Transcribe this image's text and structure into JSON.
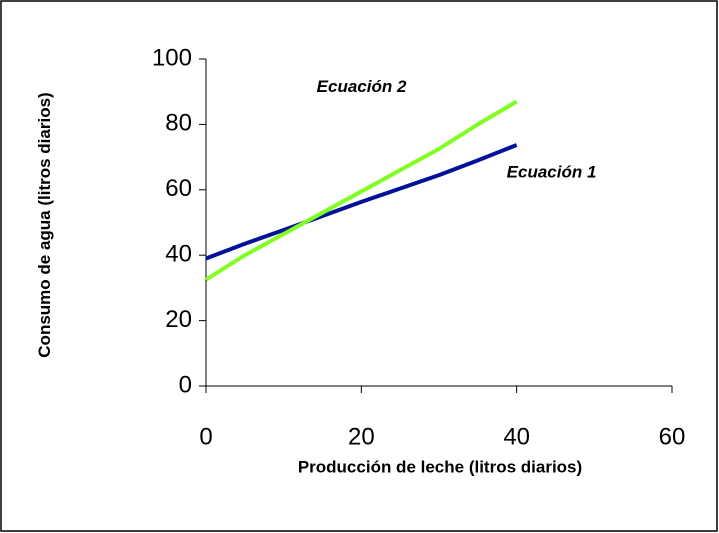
{
  "chart_data": {
    "type": "line",
    "x_label": "Producción de leche (litros diarios)",
    "y_label": "Consumo de agua (litros diarios)",
    "x": [
      0,
      5,
      10,
      15,
      20,
      25,
      30,
      35,
      40
    ],
    "series": [
      {
        "name": "Ecuación 1",
        "color": "#00129a",
        "values": [
          39,
          43.5,
          47.7,
          52,
          56.3,
          60.4,
          64.5,
          69,
          73.7
        ]
      },
      {
        "name": "Ecuación 2",
        "color": "#80ff20",
        "values": [
          32.5,
          40,
          46.5,
          53,
          59.5,
          66,
          72.5,
          80,
          87
        ]
      }
    ],
    "xlim": [
      0,
      60
    ],
    "xticks": [
      0,
      20,
      40,
      60
    ],
    "ylim": [
      0,
      100
    ],
    "yticks": [
      0,
      20,
      40,
      60,
      80,
      100
    ],
    "grid": false
  }
}
